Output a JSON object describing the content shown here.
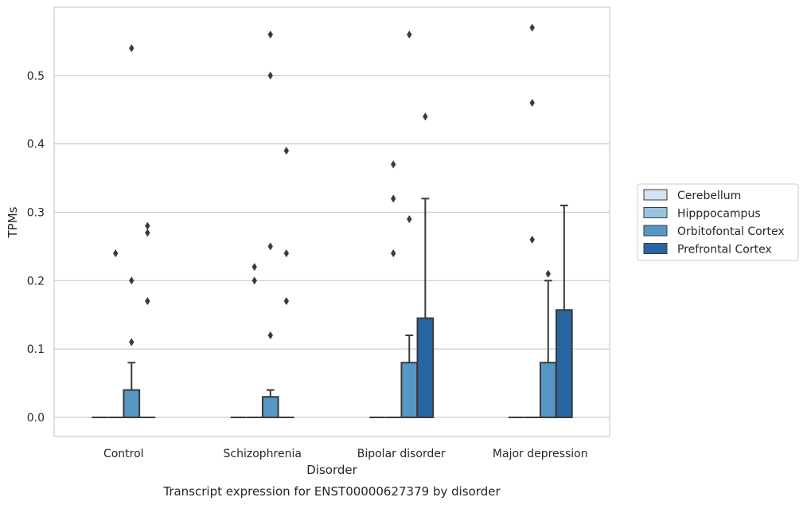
{
  "chart_data": {
    "type": "box",
    "title": "Transcript expression for ENST00000627379 by disorder",
    "xlabel": "Disorder",
    "ylabel": "TPMs",
    "ylim": [
      -0.028,
      0.6
    ],
    "yticks": [
      "0.0",
      "0.1",
      "0.2",
      "0.3",
      "0.4",
      "0.5"
    ],
    "grid": "horizontal",
    "legend_position": "right",
    "categories": [
      "Control",
      "Schizophrenia",
      "Bipolar disorder",
      "Major depression"
    ],
    "series": [
      {
        "name": "Cerebellum",
        "color": "#d3e3f3",
        "boxes": [
          {
            "q1": 0,
            "median": 0,
            "q3": 0,
            "whislo": 0,
            "whishi": 0,
            "fliers": []
          },
          {
            "q1": 0,
            "median": 0,
            "q3": 0,
            "whislo": 0,
            "whishi": 0,
            "fliers": []
          },
          {
            "q1": 0,
            "median": 0,
            "q3": 0,
            "whislo": 0,
            "whishi": 0,
            "fliers": []
          },
          {
            "q1": 0,
            "median": 0,
            "q3": 0,
            "whislo": 0,
            "whishi": 0,
            "fliers": []
          }
        ]
      },
      {
        "name": "Hipppocampus",
        "color": "#9ac3df",
        "boxes": [
          {
            "q1": 0,
            "median": 0,
            "q3": 0,
            "whislo": 0,
            "whishi": 0,
            "fliers": [
              0.24
            ]
          },
          {
            "q1": 0,
            "median": 0,
            "q3": 0,
            "whislo": 0,
            "whishi": 0,
            "fliers": [
              0.22,
              0.2
            ]
          },
          {
            "q1": 0,
            "median": 0,
            "q3": 0,
            "whislo": 0,
            "whishi": 0,
            "fliers": [
              0.37,
              0.32,
              0.24
            ]
          },
          {
            "q1": 0,
            "median": 0,
            "q3": 0,
            "whislo": 0,
            "whishi": 0,
            "fliers": [
              0.57,
              0.46,
              0.26
            ]
          }
        ]
      },
      {
        "name": "Orbitofontal Cortex",
        "color": "#5697c5",
        "boxes": [
          {
            "q1": 0,
            "median": 0,
            "q3": 0.04,
            "whislo": 0,
            "whishi": 0.08,
            "fliers": [
              0.54,
              0.2,
              0.11
            ]
          },
          {
            "q1": 0,
            "median": 0,
            "q3": 0.03,
            "whislo": 0,
            "whishi": 0.04,
            "fliers": [
              0.56,
              0.5,
              0.25,
              0.12
            ]
          },
          {
            "q1": 0,
            "median": 0,
            "q3": 0.08,
            "whislo": 0,
            "whishi": 0.12,
            "fliers": [
              0.56,
              0.29
            ]
          },
          {
            "q1": 0,
            "median": 0,
            "q3": 0.08,
            "whislo": 0,
            "whishi": 0.2,
            "fliers": [
              0.21
            ]
          }
        ]
      },
      {
        "name": "Prefrontal Cortex",
        "color": "#2866a3",
        "boxes": [
          {
            "q1": 0,
            "median": 0,
            "q3": 0,
            "whislo": 0,
            "whishi": 0,
            "fliers": [
              0.28,
              0.27,
              0.17
            ]
          },
          {
            "q1": 0,
            "median": 0,
            "q3": 0,
            "whislo": 0,
            "whishi": 0,
            "fliers": [
              0.39,
              0.24,
              0.17
            ]
          },
          {
            "q1": 0,
            "median": 0,
            "q3": 0.145,
            "whislo": 0,
            "whishi": 0.32,
            "fliers": [
              0.44
            ]
          },
          {
            "q1": 0,
            "median": 0,
            "q3": 0.157,
            "whislo": 0,
            "whishi": 0.31,
            "fliers": []
          }
        ]
      }
    ]
  }
}
